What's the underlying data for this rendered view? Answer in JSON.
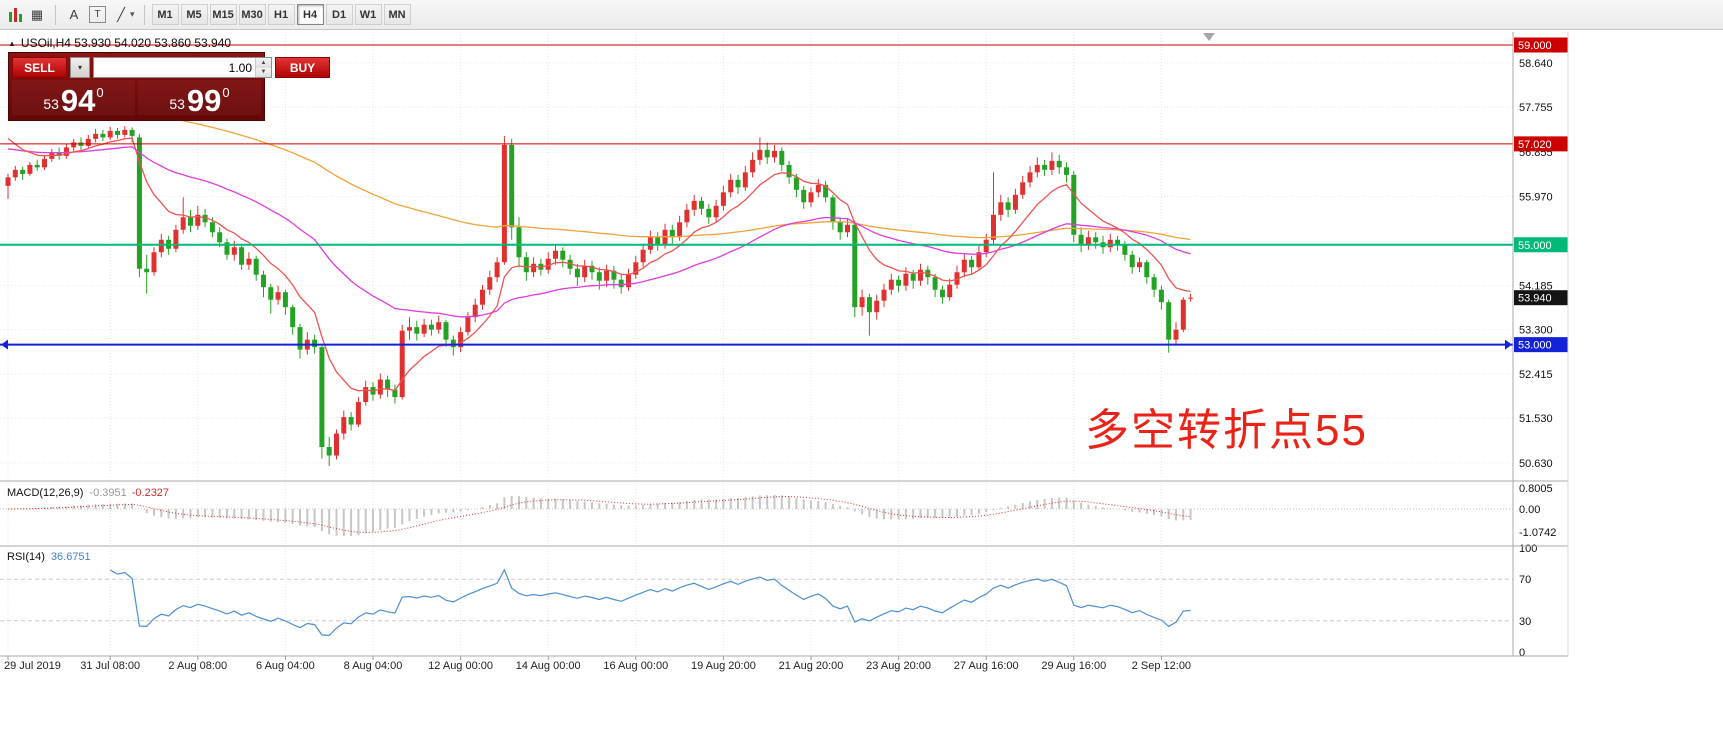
{
  "toolbar": {
    "icons": [
      {
        "name": "candlestick-chart-icon",
        "glyph": ""
      },
      {
        "name": "tile-windows-icon",
        "glyph": "▦"
      },
      {
        "name": "font-icon",
        "glyph": "A"
      },
      {
        "name": "text-tool-icon",
        "glyph": "T"
      },
      {
        "name": "draw-tools-icon",
        "glyph": "╱"
      },
      {
        "name": "dropdown-caret-icon",
        "glyph": "▾"
      }
    ],
    "timeframes": [
      "M1",
      "M5",
      "M15",
      "M30",
      "H1",
      "H4",
      "D1",
      "W1",
      "MN"
    ],
    "active_timeframe": "H4"
  },
  "chart": {
    "expand_marker": "▲",
    "title": "USOil,H4 53.930 54.020 53.860 53.940",
    "annotation": "多空转折点55",
    "current_price": {
      "label": "53.940",
      "price": 53.94,
      "color": "#141414"
    },
    "hlines": [
      {
        "label": "59.000",
        "price": 59.0,
        "color": "#cc0000",
        "width": 1
      },
      {
        "label": "57.020",
        "price": 57.02,
        "color": "#cc0000",
        "width": 1
      },
      {
        "label": "55.000",
        "price": 55.0,
        "color": "#00b878",
        "width": 2
      },
      {
        "label": "53.000",
        "price": 53.0,
        "color": "#1322d8",
        "width": 2,
        "arrows": true
      }
    ]
  },
  "trade_panel": {
    "sell_label": "SELL",
    "buy_label": "BUY",
    "volume": "1.00",
    "dropdown_glyph": "▾",
    "spin_up": "▲",
    "spin_down": "▼",
    "bid": {
      "small": "53",
      "big": "94",
      "sup": "0"
    },
    "ask": {
      "small": "53",
      "big": "99",
      "sup": "0"
    }
  },
  "macd": {
    "label": "MACD(12,26,9)",
    "value_main": "-0.3951",
    "value_signal": "-0.2327",
    "settings": {
      "fast": 12,
      "slow": 26,
      "signal": 9
    },
    "scale": [
      {
        "label": "0.8005",
        "y": 492
      },
      {
        "label": "0.00",
        "y": 513
      },
      {
        "label": "-1.0742",
        "y": 536
      }
    ]
  },
  "rsi": {
    "label": "RSI(14)",
    "value": "36.6751",
    "period": 14,
    "levels": [
      100,
      70,
      30,
      0
    ]
  },
  "chart_data": {
    "type": "candlestick",
    "symbol": "USOil",
    "timeframe": "H4",
    "ohlc_line": {
      "open": 53.93,
      "high": 54.02,
      "low": 53.86,
      "close": 53.94
    },
    "colors": {
      "up": "#e03131",
      "down": "#23a223"
    },
    "y_range": [
      50.2,
      59.3
    ],
    "y_ticks": [
      {
        "label": "58.640",
        "price": 58.64
      },
      {
        "label": "57.755",
        "price": 57.755
      },
      {
        "label": "56.855",
        "price": 56.855
      },
      {
        "label": "55.970",
        "price": 55.97
      },
      {
        "label": "54.185",
        "price": 54.185
      },
      {
        "label": "53.300",
        "price": 53.3
      },
      {
        "label": "52.415",
        "price": 52.415
      },
      {
        "label": "51.530",
        "price": 51.53
      },
      {
        "label": "50.630",
        "price": 50.63
      }
    ],
    "x_ticks": [
      {
        "i": 0,
        "label": "29 Jul 2019"
      },
      {
        "i": 14,
        "label": "31 Jul 08:00"
      },
      {
        "i": 26,
        "label": "2 Aug 08:00"
      },
      {
        "i": 38,
        "label": "6 Aug 04:00"
      },
      {
        "i": 50,
        "label": "8 Aug 04:00"
      },
      {
        "i": 62,
        "label": "12 Aug 00:00"
      },
      {
        "i": 74,
        "label": "14 Aug 00:00"
      },
      {
        "i": 86,
        "label": "16 Aug 00:00"
      },
      {
        "i": 98,
        "label": "19 Aug 20:00"
      },
      {
        "i": 110,
        "label": "21 Aug 20:00"
      },
      {
        "i": 122,
        "label": "23 Aug 20:00"
      },
      {
        "i": 134,
        "label": "27 Aug 16:00"
      },
      {
        "i": 146,
        "label": "29 Aug 16:00"
      },
      {
        "i": 158,
        "label": "2 Sep 12:00"
      }
    ],
    "overlays": [
      {
        "name": "ma-slow",
        "type": "ema",
        "period": 120,
        "seed": 58.1,
        "color": "#f0a43a"
      },
      {
        "name": "ma-mid",
        "type": "ema",
        "period": 42,
        "seed": 56.95,
        "color": "#e03ce0"
      },
      {
        "name": "ma-fast",
        "type": "ema",
        "period": 10,
        "seed": 57.3,
        "color": "#ef5350"
      }
    ],
    "candles": [
      [
        56.18,
        56.42,
        55.92,
        56.35
      ],
      [
        56.35,
        56.58,
        56.28,
        56.5
      ],
      [
        56.5,
        56.56,
        56.3,
        56.42
      ],
      [
        56.42,
        56.66,
        56.38,
        56.6
      ],
      [
        56.6,
        56.7,
        56.48,
        56.55
      ],
      [
        56.55,
        56.8,
        56.5,
        56.72
      ],
      [
        56.72,
        56.92,
        56.66,
        56.85
      ],
      [
        56.85,
        56.95,
        56.7,
        56.78
      ],
      [
        56.78,
        57.02,
        56.72,
        56.95
      ],
      [
        56.95,
        57.12,
        56.88,
        57.05
      ],
      [
        57.05,
        57.15,
        56.9,
        56.98
      ],
      [
        56.98,
        57.2,
        56.94,
        57.12
      ],
      [
        57.12,
        57.32,
        57.05,
        57.22
      ],
      [
        57.22,
        57.3,
        57.08,
        57.15
      ],
      [
        57.15,
        57.36,
        57.1,
        57.28
      ],
      [
        57.28,
        57.34,
        57.12,
        57.2
      ],
      [
        57.2,
        57.38,
        57.15,
        57.3
      ],
      [
        57.3,
        57.35,
        57.05,
        57.18
      ],
      [
        57.15,
        57.22,
        54.35,
        54.52
      ],
      [
        54.52,
        54.8,
        54.02,
        54.45
      ],
      [
        54.45,
        54.95,
        54.38,
        54.85
      ],
      [
        54.85,
        55.22,
        54.75,
        55.1
      ],
      [
        55.1,
        55.18,
        54.8,
        54.92
      ],
      [
        54.92,
        55.4,
        54.85,
        55.3
      ],
      [
        55.3,
        55.95,
        55.22,
        55.55
      ],
      [
        55.55,
        55.7,
        55.25,
        55.38
      ],
      [
        55.38,
        55.78,
        55.3,
        55.6
      ],
      [
        55.6,
        55.72,
        55.35,
        55.45
      ],
      [
        55.45,
        55.55,
        55.15,
        55.25
      ],
      [
        55.25,
        55.35,
        54.95,
        55.05
      ],
      [
        55.05,
        55.12,
        54.7,
        54.8
      ],
      [
        54.8,
        55.08,
        54.68,
        54.95
      ],
      [
        54.95,
        55.0,
        54.5,
        54.6
      ],
      [
        54.6,
        54.85,
        54.5,
        54.72
      ],
      [
        54.72,
        54.78,
        54.28,
        54.4
      ],
      [
        54.4,
        54.48,
        53.95,
        54.15
      ],
      [
        54.15,
        54.22,
        53.62,
        53.9
      ],
      [
        53.9,
        54.18,
        53.8,
        54.05
      ],
      [
        54.05,
        54.1,
        53.6,
        53.75
      ],
      [
        53.75,
        53.8,
        53.2,
        53.35
      ],
      [
        53.35,
        53.42,
        52.72,
        52.9
      ],
      [
        52.9,
        53.25,
        52.8,
        53.1
      ],
      [
        53.1,
        53.2,
        52.82,
        52.95
      ],
      [
        52.95,
        53.0,
        50.72,
        50.95
      ],
      [
        50.95,
        51.15,
        50.57,
        50.78
      ],
      [
        50.78,
        51.3,
        50.7,
        51.22
      ],
      [
        51.22,
        51.68,
        51.1,
        51.55
      ],
      [
        51.55,
        51.65,
        51.28,
        51.4
      ],
      [
        51.4,
        51.95,
        51.35,
        51.85
      ],
      [
        51.85,
        52.28,
        51.78,
        52.15
      ],
      [
        52.15,
        52.25,
        51.88,
        52.0
      ],
      [
        52.0,
        52.42,
        51.92,
        52.3
      ],
      [
        52.3,
        52.38,
        51.95,
        52.1
      ],
      [
        52.1,
        52.2,
        51.82,
        51.95
      ],
      [
        51.95,
        53.4,
        51.9,
        53.28
      ],
      [
        53.28,
        53.55,
        53.1,
        53.35
      ],
      [
        53.35,
        53.48,
        53.08,
        53.22
      ],
      [
        53.22,
        53.52,
        53.15,
        53.4
      ],
      [
        53.4,
        53.5,
        53.18,
        53.3
      ],
      [
        53.3,
        53.58,
        53.22,
        53.45
      ],
      [
        53.45,
        53.5,
        52.95,
        53.1
      ],
      [
        53.1,
        53.18,
        52.78,
        52.95
      ],
      [
        52.95,
        53.35,
        52.85,
        53.25
      ],
      [
        53.25,
        53.65,
        53.18,
        53.55
      ],
      [
        53.55,
        53.92,
        53.45,
        53.8
      ],
      [
        53.8,
        54.2,
        53.7,
        54.1
      ],
      [
        54.1,
        54.48,
        54.0,
        54.35
      ],
      [
        54.35,
        54.75,
        54.25,
        54.65
      ],
      [
        54.65,
        57.18,
        54.6,
        57.0
      ],
      [
        57.0,
        57.12,
        55.1,
        55.35
      ],
      [
        55.35,
        55.55,
        54.55,
        54.75
      ],
      [
        54.75,
        54.85,
        54.28,
        54.45
      ],
      [
        54.45,
        54.75,
        54.35,
        54.62
      ],
      [
        54.62,
        54.72,
        54.38,
        54.5
      ],
      [
        54.5,
        54.85,
        54.42,
        54.72
      ],
      [
        54.72,
        55.0,
        54.6,
        54.88
      ],
      [
        54.88,
        54.95,
        54.55,
        54.7
      ],
      [
        54.7,
        54.8,
        54.4,
        54.52
      ],
      [
        54.52,
        54.62,
        54.18,
        54.35
      ],
      [
        54.35,
        54.7,
        54.25,
        54.58
      ],
      [
        54.58,
        54.68,
        54.3,
        54.45
      ],
      [
        54.45,
        54.55,
        54.1,
        54.28
      ],
      [
        54.28,
        54.6,
        54.15,
        54.48
      ],
      [
        54.48,
        54.58,
        54.12,
        54.3
      ],
      [
        54.3,
        54.42,
        54.02,
        54.15
      ],
      [
        54.15,
        54.52,
        54.08,
        54.4
      ],
      [
        54.4,
        54.78,
        54.32,
        54.65
      ],
      [
        54.65,
        55.02,
        54.55,
        54.9
      ],
      [
        54.9,
        55.28,
        54.82,
        55.15
      ],
      [
        55.15,
        55.25,
        54.88,
        55.0
      ],
      [
        55.0,
        55.42,
        54.92,
        55.3
      ],
      [
        55.3,
        55.4,
        55.02,
        55.15
      ],
      [
        55.15,
        55.58,
        55.08,
        55.45
      ],
      [
        55.45,
        55.82,
        55.35,
        55.7
      ],
      [
        55.7,
        56.0,
        55.58,
        55.88
      ],
      [
        55.88,
        55.96,
        55.6,
        55.72
      ],
      [
        55.72,
        55.82,
        55.42,
        55.55
      ],
      [
        55.55,
        55.9,
        55.45,
        55.78
      ],
      [
        55.78,
        56.18,
        55.68,
        56.05
      ],
      [
        56.05,
        56.42,
        55.95,
        56.3
      ],
      [
        56.3,
        56.4,
        56.02,
        56.15
      ],
      [
        56.15,
        56.58,
        56.08,
        56.45
      ],
      [
        56.45,
        56.85,
        56.35,
        56.7
      ],
      [
        56.7,
        57.15,
        56.6,
        56.9
      ],
      [
        56.9,
        57.05,
        56.62,
        56.75
      ],
      [
        56.75,
        57.0,
        56.65,
        56.88
      ],
      [
        56.88,
        56.95,
        56.48,
        56.6
      ],
      [
        56.6,
        56.68,
        56.22,
        56.35
      ],
      [
        56.35,
        56.42,
        55.95,
        56.1
      ],
      [
        56.1,
        56.18,
        55.72,
        55.85
      ],
      [
        55.85,
        56.15,
        55.75,
        56.05
      ],
      [
        56.05,
        56.32,
        55.95,
        56.2
      ],
      [
        56.2,
        56.28,
        55.85,
        55.95
      ],
      [
        55.95,
        56.0,
        55.3,
        55.45
      ],
      [
        55.45,
        55.55,
        55.1,
        55.25
      ],
      [
        55.25,
        55.52,
        55.15,
        55.4
      ],
      [
        55.4,
        55.48,
        53.55,
        53.75
      ],
      [
        53.75,
        54.1,
        53.58,
        53.95
      ],
      [
        53.95,
        54.02,
        53.18,
        53.65
      ],
      [
        53.65,
        54.0,
        53.5,
        53.88
      ],
      [
        53.88,
        54.22,
        53.75,
        54.1
      ],
      [
        54.1,
        54.42,
        54.0,
        54.3
      ],
      [
        54.3,
        54.38,
        54.05,
        54.18
      ],
      [
        54.18,
        54.55,
        54.08,
        54.42
      ],
      [
        54.42,
        54.5,
        54.12,
        54.28
      ],
      [
        54.28,
        54.62,
        54.18,
        54.5
      ],
      [
        54.5,
        54.58,
        54.2,
        54.35
      ],
      [
        54.35,
        54.42,
        53.95,
        54.1
      ],
      [
        54.1,
        54.18,
        53.82,
        53.95
      ],
      [
        53.95,
        54.32,
        53.88,
        54.2
      ],
      [
        54.2,
        54.58,
        54.12,
        54.45
      ],
      [
        54.45,
        54.82,
        54.35,
        54.7
      ],
      [
        54.7,
        54.78,
        54.42,
        54.55
      ],
      [
        54.55,
        54.98,
        54.48,
        54.85
      ],
      [
        54.85,
        55.22,
        54.75,
        55.1
      ],
      [
        55.1,
        56.45,
        55.0,
        55.6
      ],
      [
        55.6,
        56.0,
        55.48,
        55.85
      ],
      [
        55.85,
        55.95,
        55.55,
        55.7
      ],
      [
        55.7,
        56.12,
        55.62,
        56.0
      ],
      [
        56.0,
        56.38,
        55.92,
        56.25
      ],
      [
        56.25,
        56.58,
        56.15,
        56.45
      ],
      [
        56.45,
        56.75,
        56.35,
        56.6
      ],
      [
        56.6,
        56.7,
        56.38,
        56.5
      ],
      [
        56.5,
        56.85,
        56.4,
        56.68
      ],
      [
        56.68,
        56.8,
        56.42,
        56.55
      ],
      [
        56.55,
        56.65,
        56.25,
        56.4
      ],
      [
        56.4,
        56.48,
        55.05,
        55.2
      ],
      [
        55.2,
        55.35,
        54.85,
        55.0
      ],
      [
        55.0,
        55.28,
        54.9,
        55.15
      ],
      [
        55.15,
        55.25,
        54.92,
        55.05
      ],
      [
        55.05,
        55.18,
        54.82,
        54.95
      ],
      [
        54.95,
        55.22,
        54.85,
        55.1
      ],
      [
        55.1,
        55.18,
        54.88,
        55.0
      ],
      [
        55.0,
        55.08,
        54.68,
        54.8
      ],
      [
        54.8,
        54.88,
        54.42,
        54.55
      ],
      [
        54.55,
        54.75,
        54.45,
        54.65
      ],
      [
        54.65,
        54.7,
        54.22,
        54.35
      ],
      [
        54.35,
        54.42,
        53.95,
        54.1
      ],
      [
        54.1,
        54.18,
        53.7,
        53.85
      ],
      [
        53.85,
        53.9,
        52.84,
        53.1
      ],
      [
        53.1,
        53.45,
        53.02,
        53.3
      ],
      [
        53.3,
        53.95,
        53.25,
        53.9
      ],
      [
        53.93,
        54.02,
        53.86,
        53.94
      ]
    ]
  }
}
